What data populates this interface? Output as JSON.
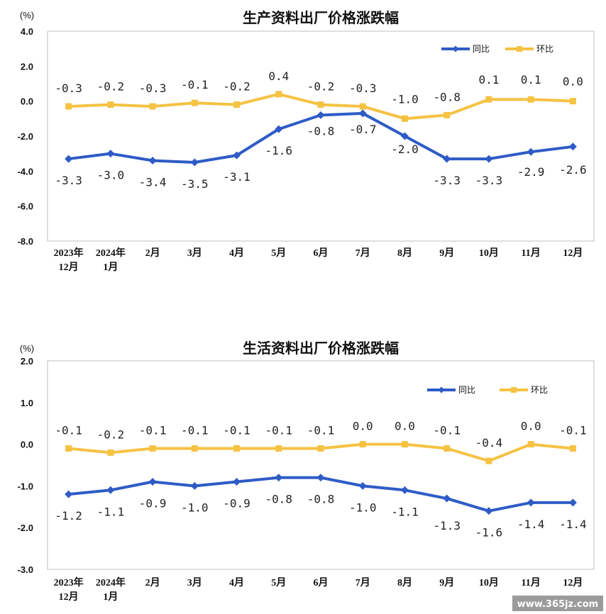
{
  "chart_data": [
    {
      "type": "line",
      "title": "生产资料出厂价格涨跌幅",
      "unit": "(%)",
      "categories": [
        [
          "2023年",
          "12月"
        ],
        [
          "2024年",
          "1月"
        ],
        [
          "2月"
        ],
        [
          "3月"
        ],
        [
          "4月"
        ],
        [
          "5月"
        ],
        [
          "6月"
        ],
        [
          "7月"
        ],
        [
          "8月"
        ],
        [
          "9月"
        ],
        [
          "10月"
        ],
        [
          "11月"
        ],
        [
          "12月"
        ]
      ],
      "ylim": [
        -8.0,
        4.0
      ],
      "yticks": [
        "4.0",
        "2.0",
        "0.0",
        "-2.0",
        "-4.0",
        "-6.0",
        "-8.0"
      ],
      "series": [
        {
          "name": "同比",
          "color": "#2E5BC6",
          "values": [
            -3.3,
            -3.0,
            -3.4,
            -3.5,
            -3.1,
            -1.6,
            -0.8,
            -0.7,
            -2.0,
            -3.3,
            -3.3,
            -2.9,
            -2.6
          ],
          "labels": [
            "-3.3",
            "-3.0",
            "-3.4",
            "-3.5",
            "-3.1",
            "-1.6",
            "-0.8",
            "-0.7",
            "-2.0",
            "-3.3",
            "-3.3",
            "-2.9",
            "-2.6"
          ]
        },
        {
          "name": "环比",
          "color": "#F5C242",
          "values": [
            -0.3,
            -0.2,
            -0.3,
            -0.1,
            -0.2,
            0.4,
            -0.2,
            -0.3,
            -1.0,
            -0.8,
            0.1,
            0.1,
            0.0
          ],
          "labels": [
            "-0.3",
            "-0.2",
            "-0.3",
            "-0.1",
            "-0.2",
            "0.4",
            "-0.2",
            "-0.3",
            "-1.0",
            "-0.8",
            "0.1",
            "0.1",
            "0.0"
          ]
        }
      ],
      "legend_position": "top-right",
      "grid": false
    },
    {
      "type": "line",
      "title": "生活资料出厂价格涨跌幅",
      "unit": "(%)",
      "categories": [
        [
          "2023年",
          "12月"
        ],
        [
          "2024年",
          "1月"
        ],
        [
          "2月"
        ],
        [
          "3月"
        ],
        [
          "4月"
        ],
        [
          "5月"
        ],
        [
          "6月"
        ],
        [
          "7月"
        ],
        [
          "8月"
        ],
        [
          "9月"
        ],
        [
          "10月"
        ],
        [
          "11月"
        ],
        [
          "12月"
        ]
      ],
      "ylim": [
        -3.0,
        2.0
      ],
      "yticks": [
        "2.0",
        "1.0",
        "0.0",
        "-1.0",
        "-2.0",
        "-3.0"
      ],
      "series": [
        {
          "name": "同比",
          "color": "#2E5BC6",
          "values": [
            -1.2,
            -1.1,
            -0.9,
            -1.0,
            -0.9,
            -0.8,
            -0.8,
            -1.0,
            -1.1,
            -1.3,
            -1.6,
            -1.4,
            -1.4
          ],
          "labels": [
            "-1.2",
            "-1.1",
            "-0.9",
            "-1.0",
            "-0.9",
            "-0.8",
            "-0.8",
            "-1.0",
            "-1.1",
            "-1.3",
            "-1.6",
            "-1.4",
            "-1.4"
          ]
        },
        {
          "name": "环比",
          "color": "#F5C242",
          "values": [
            -0.1,
            -0.2,
            -0.1,
            -0.1,
            -0.1,
            -0.1,
            -0.1,
            0.0,
            0.0,
            -0.1,
            -0.4,
            0.0,
            -0.1
          ],
          "labels": [
            "-0.1",
            "-0.2",
            "-0.1",
            "-0.1",
            "-0.1",
            "-0.1",
            "-0.1",
            "0.0",
            "0.0",
            "-0.1",
            "-0.4",
            "0.0",
            "-0.1"
          ]
        }
      ],
      "legend_position": "top-right",
      "grid": false
    }
  ],
  "watermark": "www.365jz.com"
}
